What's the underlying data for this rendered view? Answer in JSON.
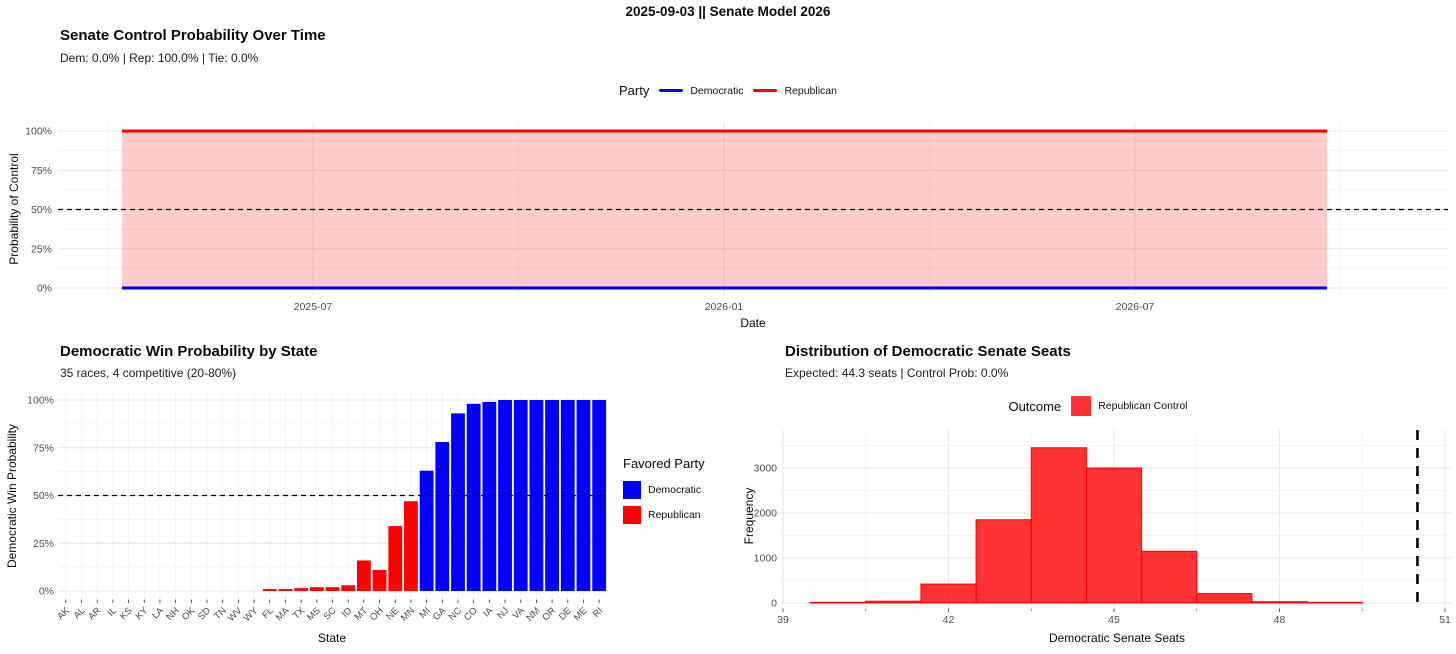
{
  "window": {
    "title": "2025-09-03 || Senate Model 2026"
  },
  "palette": {
    "democratic": "#0000FF",
    "republican": "#FF0000",
    "ribbon_fill": "rgba(255,0,0,0.2)",
    "hist_fill": "rgba(255,0,0,0.8)",
    "hist_stroke": "#FF0000",
    "grid_major": "#E4E4E4",
    "grid_minor": "#F1F1F1",
    "tick_text": "#4D4D4D",
    "reference_line": "#000000"
  },
  "chart_data": [
    {
      "type": "line",
      "title": "Senate Control Probability Over Time",
      "subtitle": "Dem: 0.0% | Rep: 100.0% | Tie: 0.0%",
      "xlabel": "Date",
      "ylabel": "Probability of Control",
      "x_ticks": [
        "2025-07",
        "2026-01",
        "2026-07"
      ],
      "y_ticks": [
        "0%",
        "25%",
        "50%",
        "75%",
        "100%"
      ],
      "ylim_pct": [
        0,
        100
      ],
      "legend": {
        "title": "Party",
        "items": [
          {
            "label": "Democratic",
            "color": "#0000FF"
          },
          {
            "label": "Republican",
            "color": "#FF0000"
          }
        ]
      },
      "series": [
        {
          "name": "Democratic",
          "constant_value_pct": 0
        },
        {
          "name": "Republican",
          "constant_value_pct": 100
        }
      ],
      "x_span": [
        "2025-04",
        "2026-10"
      ],
      "ribbon_between_pct": [
        0,
        100
      ],
      "reference_line_pct": 50
    },
    {
      "type": "bar",
      "title": "Democratic Win Probability by State",
      "subtitle": "35 races, 4 competitive (20-80%)",
      "xlabel": "State",
      "ylabel": "Democratic Win Probability",
      "y_ticks": [
        "0%",
        "25%",
        "50%",
        "75%",
        "100%"
      ],
      "ylim_pct": [
        0,
        100
      ],
      "legend": {
        "title": "Favored Party",
        "items": [
          {
            "label": "Democratic",
            "color": "#0000FF"
          },
          {
            "label": "Republican",
            "color": "#FF0000"
          }
        ]
      },
      "categories": [
        "AK",
        "AL",
        "AR",
        "IL",
        "KS",
        "KY",
        "LA",
        "NH",
        "OK",
        "SD",
        "TN",
        "WV",
        "WY",
        "FL",
        "MA",
        "TX",
        "MS",
        "SC",
        "ID",
        "MT",
        "OH",
        "NE",
        "MN",
        "MI",
        "GA",
        "NC",
        "CO",
        "IA",
        "NJ",
        "VA",
        "NM",
        "OR",
        "DE",
        "ME",
        "RI"
      ],
      "values_pct": [
        0,
        0,
        0,
        0,
        0,
        0,
        0,
        0,
        0,
        0,
        0,
        0,
        0,
        1,
        1,
        1.5,
        2,
        2,
        3,
        16,
        11,
        34,
        47,
        63,
        78,
        93,
        98,
        99,
        100,
        100,
        100,
        100,
        100,
        100,
        100
      ],
      "favored_rule": "Democratic if >= 50, else Republican",
      "reference_line_pct": 50
    },
    {
      "type": "histogram",
      "title": "Distribution of Democratic Senate Seats",
      "subtitle": "Expected: 44.3 seats | Control Prob: 0.0%",
      "xlabel": "Democratic Senate Seats",
      "ylabel": "Frequency",
      "x_ticks": [
        39,
        42,
        45,
        48,
        51
      ],
      "y_ticks": [
        0,
        1000,
        2000,
        3000
      ],
      "xlim_seats": [
        39,
        51.2
      ],
      "ylim": [
        0,
        3800
      ],
      "legend": {
        "title": "Outcome",
        "items": [
          {
            "label": "Republican Control",
            "color": "#FF3333"
          }
        ]
      },
      "bin_width_seats": 1,
      "bins": [
        {
          "seats": 40,
          "frequency": 15
        },
        {
          "seats": 41,
          "frequency": 40
        },
        {
          "seats": 42,
          "frequency": 420
        },
        {
          "seats": 43,
          "frequency": 1850
        },
        {
          "seats": 44,
          "frequency": 3450
        },
        {
          "seats": 45,
          "frequency": 3000
        },
        {
          "seats": 46,
          "frequency": 1150
        },
        {
          "seats": 47,
          "frequency": 210
        },
        {
          "seats": 48,
          "frequency": 30
        },
        {
          "seats": 49,
          "frequency": 15
        }
      ],
      "reference_line_seats": 50.5
    }
  ]
}
